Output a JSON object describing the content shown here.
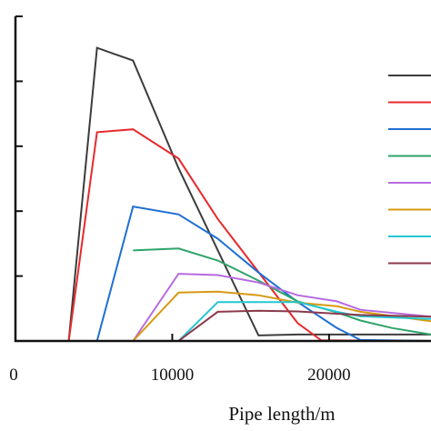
{
  "chart_data": {
    "type": "line",
    "title": "",
    "xlabel": "Pipe length/m",
    "ylabel": "",
    "xlim": [
      0,
      26500
    ],
    "ylim": [
      0,
      1
    ],
    "x_ticks": [
      0,
      10000,
      20000
    ],
    "x_tick_labels": [
      "0",
      "10000",
      "20000"
    ],
    "y_ticks": [
      0,
      0.2,
      0.4,
      0.6,
      0.8,
      1.0
    ],
    "grid": false,
    "legend": "right",
    "series": [
      {
        "color": "#3c3c3c",
        "x": [
          3400,
          5200,
          7500,
          10400,
          15500,
          18000,
          26500
        ],
        "y": [
          0,
          0.903,
          0.864,
          0.532,
          0.017,
          0.02,
          0.02
        ]
      },
      {
        "color": "#e8292d",
        "x": [
          3400,
          5200,
          7500,
          10400,
          12900,
          18000,
          19500,
          26500
        ],
        "y": [
          0,
          0.643,
          0.652,
          0.562,
          0.376,
          0.055,
          0.002,
          0.0
        ]
      },
      {
        "color": "#1f6fd3",
        "x": [
          5200,
          7500,
          10400,
          12900,
          15500,
          18000,
          20500,
          22000,
          26500
        ],
        "y": [
          0,
          0.414,
          0.39,
          0.315,
          0.211,
          0.12,
          0.04,
          0.003,
          0.0
        ]
      },
      {
        "color": "#2ea46a",
        "x": [
          7500,
          10400,
          12900,
          15500,
          18000,
          20500,
          22000,
          24000,
          26500
        ],
        "y": [
          0.279,
          0.285,
          0.248,
          0.186,
          0.122,
          0.088,
          0.063,
          0.04,
          0.02
        ]
      },
      {
        "color": "#b66ae0",
        "x": [
          7500,
          10400,
          12900,
          15500,
          18000,
          20500,
          22000,
          26500
        ],
        "y": [
          0,
          0.207,
          0.203,
          0.18,
          0.141,
          0.122,
          0.096,
          0.075
        ]
      },
      {
        "color": "#d69a12",
        "x": [
          7500,
          10400,
          12900,
          15500,
          18000,
          20500,
          22000,
          26500
        ],
        "y": [
          0,
          0.149,
          0.152,
          0.141,
          0.118,
          0.107,
          0.09,
          0.061
        ]
      },
      {
        "color": "#22c7d2",
        "x": [
          10400,
          12900,
          15500,
          18000,
          20500,
          22000,
          26500
        ],
        "y": [
          0,
          0.12,
          0.12,
          0.12,
          0.09,
          0.076,
          0.068
        ]
      },
      {
        "color": "#8b3a4a",
        "x": [
          10400,
          12900,
          15500,
          18000,
          20500,
          22000,
          26500
        ],
        "y": [
          0,
          0.09,
          0.093,
          0.091,
          0.084,
          0.08,
          0.075
        ]
      }
    ]
  }
}
